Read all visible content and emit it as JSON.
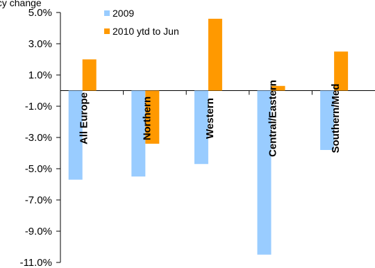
{
  "chart_data": {
    "type": "bar",
    "title": "ancy change",
    "categories": [
      "All Europe",
      "Northern",
      "Western",
      "Central/Eastern",
      "Southern/Med"
    ],
    "series": [
      {
        "name": "2009",
        "color": "#99ccff",
        "values": [
          -5.7,
          -5.5,
          -4.7,
          -10.5,
          -3.8
        ]
      },
      {
        "name": "2010 ytd to Jun",
        "color": "#ff9900",
        "values": [
          2.0,
          -3.4,
          4.6,
          0.3,
          2.5
        ]
      }
    ],
    "ylim": [
      -11.0,
      5.0
    ],
    "yticks": [
      5.0,
      3.0,
      1.0,
      -1.0,
      -3.0,
      -5.0,
      -7.0,
      -9.0,
      -11.0
    ],
    "ytick_labels": [
      "5.0%",
      "3.0%",
      "1.0%",
      "-1.0%",
      "-3.0%",
      "-5.0%",
      "-7.0%",
      "-9.0%",
      "-11.0%"
    ],
    "grid": false,
    "legend_position": "top-center"
  }
}
